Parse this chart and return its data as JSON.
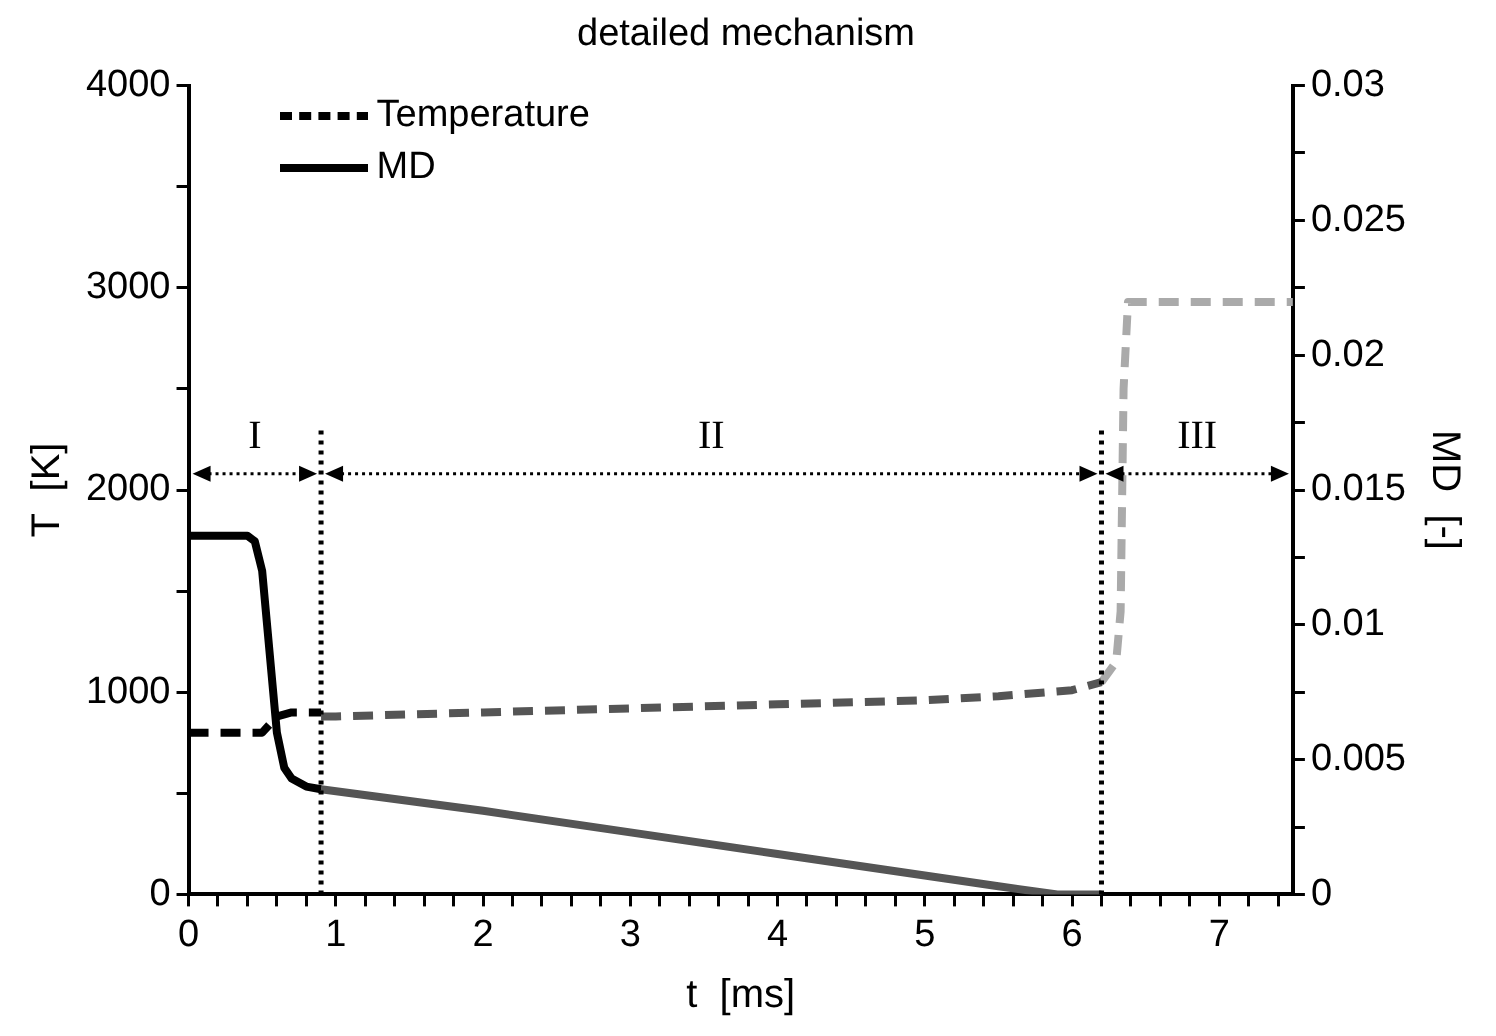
{
  "chart_data": {
    "type": "line",
    "title": "detailed mechanism",
    "xlabel": "t  [ms]",
    "ylabel": "T  [K]",
    "y2label": "MD  [-]",
    "xlim": [
      0,
      7.5
    ],
    "xticks": [
      0,
      {
        "value": 0.2,
        "label": null
      },
      {
        "value": 0.4,
        "label": null
      },
      {
        "value": 0.6,
        "label": null
      },
      {
        "value": 0.8,
        "label": null
      },
      1,
      {
        "value": 1.2,
        "label": null
      },
      {
        "value": 1.4,
        "label": null
      },
      {
        "value": 1.6,
        "label": null
      },
      {
        "value": 1.8,
        "label": null
      },
      2,
      {
        "value": 2.2,
        "label": null
      },
      {
        "value": 2.4,
        "label": null
      },
      {
        "value": 2.6,
        "label": null
      },
      {
        "value": 2.8,
        "label": null
      },
      3,
      {
        "value": 3.2,
        "label": null
      },
      {
        "value": 3.4,
        "label": null
      },
      {
        "value": 3.6,
        "label": null
      },
      {
        "value": 3.8,
        "label": null
      },
      4,
      {
        "value": 4.2,
        "label": null
      },
      {
        "value": 4.4,
        "label": null
      },
      {
        "value": 4.6,
        "label": null
      },
      {
        "value": 4.8,
        "label": null
      },
      5,
      {
        "value": 5.2,
        "label": null
      },
      {
        "value": 5.4,
        "label": null
      },
      {
        "value": 5.6,
        "label": null
      },
      {
        "value": 5.8,
        "label": null
      },
      6,
      {
        "value": 6.2,
        "label": null
      },
      {
        "value": 6.4,
        "label": null
      },
      {
        "value": 6.6,
        "label": null
      },
      {
        "value": 6.8,
        "label": null
      },
      7,
      {
        "value": 7.2,
        "label": null
      },
      {
        "value": 7.4,
        "label": null
      }
    ],
    "ylim": [
      0,
      4000
    ],
    "yticks": [
      0,
      {
        "value": 500,
        "label": null
      },
      1000,
      {
        "value": 1500,
        "label": null
      },
      2000,
      {
        "value": 2500,
        "label": null
      },
      3000,
      {
        "value": 3500,
        "label": null
      },
      4000
    ],
    "y2lim": [
      0,
      0.03
    ],
    "y2ticks": [
      0,
      {
        "value": 0.0025,
        "label": null
      },
      0.005,
      {
        "value": 0.0075,
        "label": null
      },
      0.01,
      {
        "value": 0.0125,
        "label": null
      },
      0.015,
      {
        "value": 0.0175,
        "label": null
      },
      0.02,
      {
        "value": 0.0225,
        "label": null
      },
      0.025,
      {
        "value": 0.0275,
        "label": null
      },
      0.03
    ],
    "grid": false,
    "legend": "top left",
    "series": [
      {
        "name": "Temperature",
        "color": "#000000",
        "line_style": "dashed",
        "x": [
          0,
          0.4,
          0.5,
          0.55,
          0.6,
          0.7,
          0.9
        ],
        "values": [
          800,
          800,
          800,
          840,
          880,
          900,
          900
        ]
      },
      {
        "color": "#555555",
        "line_style": "dashed",
        "x": [
          0.9,
          1,
          2,
          3,
          4,
          5,
          5.5,
          6,
          6.2
        ],
        "values": [
          880,
          880,
          900,
          920,
          940,
          960,
          980,
          1010,
          1050
        ]
      },
      {
        "color": "#aaaaaa",
        "line_style": "dashed",
        "x": [
          6.2,
          6.3,
          6.33,
          6.35,
          6.38,
          7.5
        ],
        "values": [
          1050,
          1150,
          1400,
          2500,
          2930,
          2930
        ]
      },
      {
        "name": "MD",
        "color": "#000000",
        "line_style": "solid",
        "axis": "y2",
        "x": [
          0,
          0.4,
          0.45,
          0.5,
          0.55,
          0.6,
          0.65,
          0.7,
          0.8,
          0.9
        ],
        "values": [
          0.0133,
          0.0133,
          0.0131,
          0.012,
          0.009,
          0.006,
          0.0047,
          0.0043,
          0.004,
          0.0039
        ]
      },
      {
        "color": "#555555",
        "line_style": "solid",
        "axis": "y2",
        "x": [
          0.9,
          2,
          3,
          4,
          5,
          5.5,
          5.9,
          6.2
        ],
        "values": [
          0.0039,
          0.0031,
          0.0023,
          0.0015,
          0.0007,
          0.0003,
          0,
          0
        ]
      }
    ],
    "ref_lines": [
      {
        "axis": "x",
        "value": 0.9,
        "line_style": "dotted",
        "color": "#000000"
      },
      {
        "axis": "x",
        "value": 6.2,
        "line_style": "dotted",
        "color": "#000000"
      }
    ],
    "annotations": [
      "I",
      "II",
      "III"
    ]
  }
}
